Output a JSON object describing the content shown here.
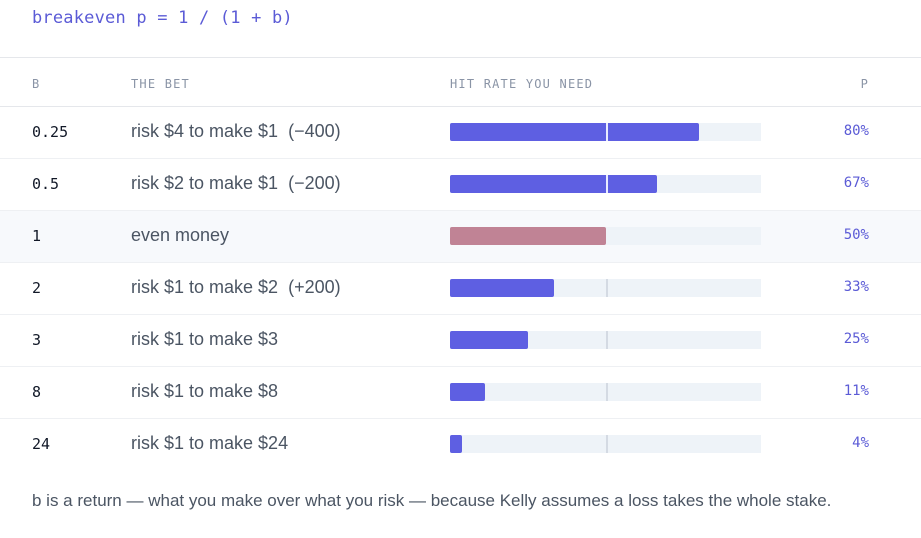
{
  "formula": "breakeven p = 1 / (1 + b)",
  "columns": {
    "b": "B",
    "bet": "THE BET",
    "hit": "HIT RATE YOU NEED",
    "p": "P"
  },
  "rows": [
    {
      "b": "0.25",
      "bet": "risk $4 to make $1  (−400)",
      "p": "80%",
      "hit_fraction": 0.8,
      "even": false
    },
    {
      "b": "0.5",
      "bet": "risk $2 to make $1  (−200)",
      "p": "67%",
      "hit_fraction": 0.667,
      "even": false
    },
    {
      "b": "1",
      "bet": "even money",
      "p": "50%",
      "hit_fraction": 0.5,
      "even": true
    },
    {
      "b": "2",
      "bet": "risk $1 to make $2  (+200)",
      "p": "33%",
      "hit_fraction": 0.333,
      "even": false
    },
    {
      "b": "3",
      "bet": "risk $1 to make $3",
      "p": "25%",
      "hit_fraction": 0.25,
      "even": false
    },
    {
      "b": "8",
      "bet": "risk $1 to make $8",
      "p": "11%",
      "hit_fraction": 0.111,
      "even": false
    },
    {
      "b": "24",
      "bet": "risk $1 to make $24",
      "p": "4%",
      "hit_fraction": 0.04,
      "even": false
    }
  ],
  "footnote": "b is a return — what you make over what you risk — because Kelly assumes a loss takes the whole stake.",
  "colors": {
    "bar": "#5e5fe2",
    "bar_even": "#c08395",
    "accent_text": "#5b5bd6"
  }
}
